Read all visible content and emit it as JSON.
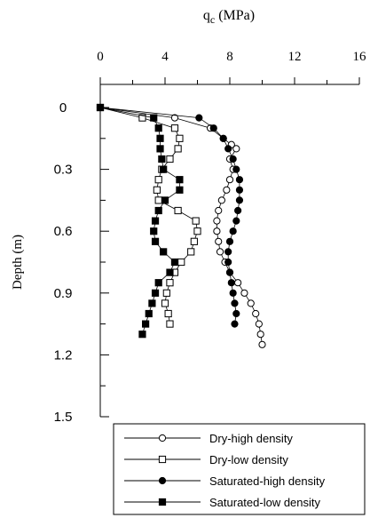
{
  "chart_data": {
    "type": "scatter",
    "title": "q_c (MPa)",
    "title_main": "q",
    "title_sub": "c",
    "title_unit": " (MPa)",
    "xlabel": "q_c (MPa)",
    "ylabel": "Depth (m)",
    "x_axis_position": "top",
    "y_inverted": true,
    "xlim": [
      0,
      16
    ],
    "ylim": [
      0,
      1.5
    ],
    "x_ticks": [
      0,
      4,
      8,
      12,
      16
    ],
    "x_tick_labels": [
      "0",
      "4",
      "8",
      "12",
      "16"
    ],
    "y_ticks": [
      0,
      0.3,
      0.6,
      0.9,
      1.2,
      1.5
    ],
    "y_tick_labels": [
      "0",
      "0.3",
      "0.6",
      "0.9",
      "1.2",
      "1.5"
    ],
    "grid": false,
    "legend_position": "bottom-right",
    "series": [
      {
        "name": "Dry-high density",
        "marker": "circle-open",
        "points": [
          [
            0,
            0
          ],
          [
            4.6,
            0.05
          ],
          [
            6.8,
            0.1
          ],
          [
            7.6,
            0.15
          ],
          [
            8.1,
            0.18
          ],
          [
            8.4,
            0.2
          ],
          [
            8.0,
            0.25
          ],
          [
            8.2,
            0.3
          ],
          [
            8.0,
            0.35
          ],
          [
            7.8,
            0.4
          ],
          [
            7.5,
            0.45
          ],
          [
            7.3,
            0.5
          ],
          [
            7.2,
            0.55
          ],
          [
            7.2,
            0.6
          ],
          [
            7.3,
            0.65
          ],
          [
            7.4,
            0.7
          ],
          [
            7.7,
            0.75
          ],
          [
            8.0,
            0.8
          ],
          [
            8.5,
            0.85
          ],
          [
            8.9,
            0.9
          ],
          [
            9.3,
            0.95
          ],
          [
            9.6,
            1.0
          ],
          [
            9.8,
            1.05
          ],
          [
            9.9,
            1.1
          ],
          [
            10.0,
            1.15
          ]
        ]
      },
      {
        "name": "Dry-low density",
        "marker": "square-open",
        "points": [
          [
            0,
            0
          ],
          [
            2.6,
            0.05
          ],
          [
            4.6,
            0.1
          ],
          [
            4.9,
            0.15
          ],
          [
            4.8,
            0.2
          ],
          [
            4.3,
            0.25
          ],
          [
            3.8,
            0.3
          ],
          [
            3.6,
            0.35
          ],
          [
            3.5,
            0.4
          ],
          [
            3.6,
            0.45
          ],
          [
            4.8,
            0.5
          ],
          [
            5.9,
            0.55
          ],
          [
            6.0,
            0.6
          ],
          [
            5.8,
            0.65
          ],
          [
            5.6,
            0.7
          ],
          [
            5.0,
            0.75
          ],
          [
            4.6,
            0.8
          ],
          [
            4.3,
            0.85
          ],
          [
            4.1,
            0.9
          ],
          [
            4.0,
            0.95
          ],
          [
            4.2,
            1.0
          ],
          [
            4.3,
            1.05
          ]
        ]
      },
      {
        "name": "Saturated-high density",
        "marker": "circle-filled",
        "points": [
          [
            0,
            0
          ],
          [
            6.1,
            0.05
          ],
          [
            7.0,
            0.1
          ],
          [
            7.6,
            0.15
          ],
          [
            7.9,
            0.2
          ],
          [
            8.2,
            0.25
          ],
          [
            8.4,
            0.3
          ],
          [
            8.6,
            0.35
          ],
          [
            8.6,
            0.4
          ],
          [
            8.6,
            0.45
          ],
          [
            8.5,
            0.5
          ],
          [
            8.4,
            0.55
          ],
          [
            8.2,
            0.6
          ],
          [
            8.0,
            0.65
          ],
          [
            7.9,
            0.7
          ],
          [
            7.9,
            0.75
          ],
          [
            8.0,
            0.8
          ],
          [
            8.1,
            0.85
          ],
          [
            8.2,
            0.9
          ],
          [
            8.3,
            0.95
          ],
          [
            8.4,
            1.0
          ],
          [
            8.3,
            1.05
          ]
        ]
      },
      {
        "name": "Saturated-low density",
        "marker": "square-filled",
        "points": [
          [
            0,
            0
          ],
          [
            3.3,
            0.05
          ],
          [
            3.6,
            0.1
          ],
          [
            3.7,
            0.15
          ],
          [
            3.7,
            0.2
          ],
          [
            3.8,
            0.25
          ],
          [
            3.9,
            0.3
          ],
          [
            4.9,
            0.35
          ],
          [
            4.9,
            0.4
          ],
          [
            4.0,
            0.45
          ],
          [
            3.6,
            0.5
          ],
          [
            3.4,
            0.55
          ],
          [
            3.3,
            0.6
          ],
          [
            3.4,
            0.65
          ],
          [
            3.9,
            0.7
          ],
          [
            4.6,
            0.75
          ],
          [
            4.3,
            0.8
          ],
          [
            3.6,
            0.85
          ],
          [
            3.4,
            0.9
          ],
          [
            3.2,
            0.95
          ],
          [
            3.0,
            1.0
          ],
          [
            2.8,
            1.05
          ],
          [
            2.6,
            1.1
          ]
        ]
      }
    ]
  }
}
